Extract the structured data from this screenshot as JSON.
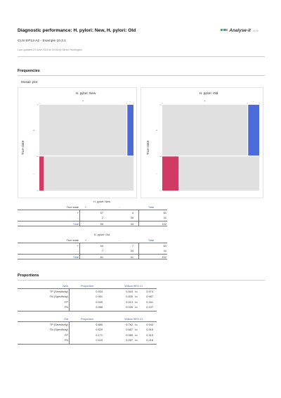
{
  "report": {
    "title": "Diagnostic performance: H. pylori: New, H. pylori: Old",
    "subtitle": "CLSI EP12-A2 - Example 10.3.1",
    "updated": "Last updated 23 June 2016 at 15:06 by Simon Huntington",
    "logo_text": "Analyse-it",
    "logo_version": "v4.90"
  },
  "sections": {
    "frequencies": "Frequencies",
    "mosaic": "Mosaic plot",
    "proportions": "Proportions"
  },
  "colors": {
    "positive": "#4a6bd8",
    "negative": "#d03a64",
    "cell": "#e0e0e0",
    "accent": "#3a5fb0"
  },
  "mosaic": [
    {
      "title": "H. pylori: New",
      "ylabel": "True state",
      "col_labels": [
        "+",
        "-"
      ],
      "row_labels": [
        "+",
        "-"
      ],
      "counts": {
        "pos_pos": 57,
        "pos_neg": 4,
        "neg_pos": 2,
        "neg_neg": 39
      }
    },
    {
      "title": "H. pylori: Old",
      "ylabel": "True state",
      "col_labels": [
        "+",
        "-"
      ],
      "row_labels": [
        "+",
        "-"
      ],
      "counts": {
        "pos_pos": 54,
        "pos_neg": 7,
        "neg_pos": 7,
        "neg_neg": 34
      }
    }
  ],
  "freq_tables": [
    {
      "caption": "H. pylori: New",
      "row_header": "True state",
      "col_headers": [
        "+",
        "-",
        "Total"
      ],
      "rows": [
        {
          "label": "+",
          "values": [
            "57",
            "4",
            "61"
          ]
        },
        {
          "label": "-",
          "values": [
            "2",
            "39",
            "41"
          ]
        }
      ],
      "total": {
        "label": "Total",
        "values": [
          "59",
          "43",
          "102"
        ]
      }
    },
    {
      "caption": "H. pylori: Old",
      "row_header": "True state",
      "col_headers": [
        "+",
        "-",
        "Total"
      ],
      "rows": [
        {
          "label": "+",
          "values": [
            "54",
            "7",
            "61"
          ]
        },
        {
          "label": "-",
          "values": [
            "7",
            "34",
            "41"
          ]
        }
      ],
      "total": {
        "label": "Total",
        "values": [
          "61",
          "41",
          "102"
        ]
      }
    }
  ],
  "prop_tables": [
    {
      "group": "New",
      "col_proportion": "Proportion",
      "col_ci": "Wilson 95% CI",
      "ci_to": "to",
      "rows": [
        {
          "label": "TP (Sensitivity)",
          "value": "0.934",
          "lo": "0.843",
          "hi": "0.974"
        },
        {
          "label": "TN (Specificity)",
          "value": "0.951",
          "lo": "0.839",
          "hi": "0.987"
        },
        {
          "label": "FP",
          "value": "0.049",
          "lo": "0.013",
          "hi": "0.161"
        },
        {
          "label": "FN",
          "value": "0.066",
          "lo": "0.026",
          "hi": "0.157"
        }
      ]
    },
    {
      "group": "Old",
      "col_proportion": "Proportion",
      "col_ci": "Wilson 95% CI",
      "ci_to": "to",
      "rows": [
        {
          "label": "TP (Sensitivity)",
          "value": "0.885",
          "lo": "0.782",
          "hi": "0.943"
        },
        {
          "label": "TN (Specificity)",
          "value": "0.829",
          "lo": "0.687",
          "hi": "0.915"
        },
        {
          "label": "FP",
          "value": "0.171",
          "lo": "0.085",
          "hi": "0.313"
        },
        {
          "label": "FN",
          "value": "0.115",
          "lo": "0.057",
          "hi": "0.218"
        }
      ]
    }
  ]
}
